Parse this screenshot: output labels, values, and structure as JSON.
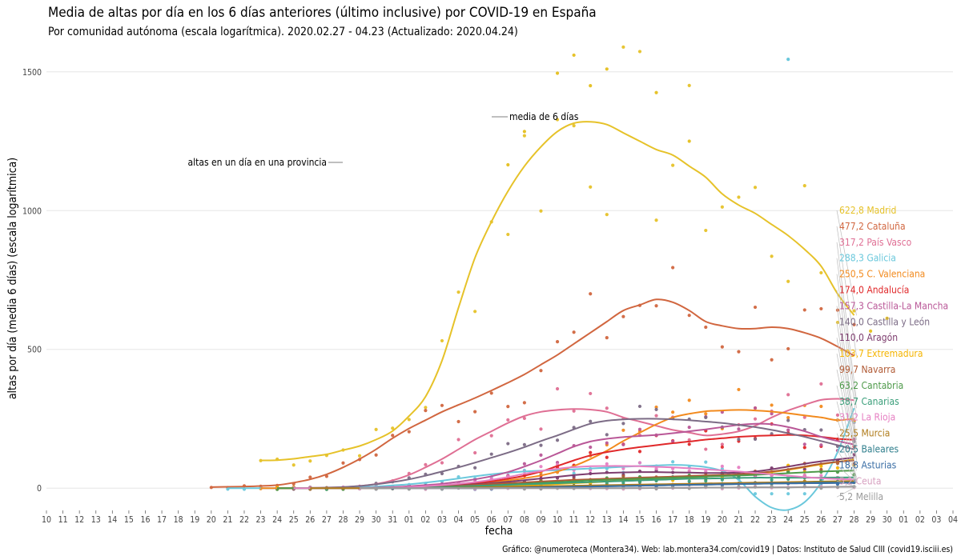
{
  "title": "Media de altas por día en los 6 días anteriores (último inclusive) por COVID-19 en España",
  "subtitle": "Por comunidad autónoma (escala logarítmica). 2020.02.27 - 04.23 (Actualizado: 2020.04.24)",
  "caption": "Gráfico: @numeroteca (Montera34). Web: lab.montera34.com/covid19 | Datos: Instituto de Salud CIII (covid19.isciii.es)",
  "chart_data": {
    "type": "line",
    "xlabel": "fecha",
    "ylabel": "altas por día (media 6 días) (escala logarítmica)",
    "ylim": [
      -80,
      1580
    ],
    "yticks": [
      0,
      500,
      1000,
      1500
    ],
    "ytick_labels": [
      "0",
      "500",
      "1000",
      "1500"
    ],
    "x_tick_labels": [
      "10",
      "11",
      "12",
      "13",
      "14",
      "15",
      "16",
      "17",
      "18",
      "19",
      "20",
      "21",
      "22",
      "23",
      "24",
      "25",
      "26",
      "27",
      "28",
      "29",
      "30",
      "31",
      "01",
      "02",
      "03",
      "04",
      "05",
      "06",
      "07",
      "08",
      "09",
      "10",
      "11",
      "12",
      "13",
      "14",
      "15",
      "16",
      "17",
      "18",
      "19",
      "20",
      "21",
      "22",
      "23",
      "24",
      "25",
      "26",
      "27",
      "28",
      "29",
      "30",
      "01",
      "02",
      "03",
      "04"
    ],
    "line_start_index": 5,
    "last_index": 49,
    "annotations": {
      "points": "altas en un día en una provincia",
      "mean": "media de 6 días"
    },
    "series": [
      {
        "name": "Madrid",
        "label": "622,8 Madrid",
        "color": "#e6c229",
        "values": [
          100,
          101,
          106,
          114,
          122,
          137,
          152,
          175,
          206,
          260,
          330,
          460,
          650,
          830,
          960,
          1070,
          1160,
          1230,
          1285,
          1315,
          1320,
          1310,
          1280,
          1250,
          1220,
          1200,
          1160,
          1120,
          1060,
          1020,
          990,
          950,
          910,
          860,
          800,
          700,
          622.8
        ]
      },
      {
        "name": "Cataluña",
        "label": "477,2 Cataluña",
        "color": "#d1663f",
        "values": [
          4,
          5,
          6,
          8,
          11,
          20,
          32,
          50,
          75,
          105,
          140,
          180,
          215,
          245,
          275,
          300,
          325,
          352,
          380,
          410,
          445,
          480,
          520,
          560,
          600,
          640,
          660,
          680,
          670,
          640,
          600,
          585,
          575,
          575,
          580,
          575,
          560,
          540,
          510,
          477.2
        ]
      },
      {
        "name": "País Vasco",
        "label": "317,2 País Vasco",
        "color": "#df6f94",
        "values": [
          0,
          0,
          0,
          1,
          2,
          4,
          8,
          15,
          28,
          48,
          75,
          105,
          140,
          175,
          205,
          235,
          260,
          275,
          282,
          285,
          283,
          275,
          255,
          240,
          225,
          210,
          200,
          190,
          195,
          205,
          225,
          255,
          280,
          300,
          318,
          322,
          317.2
        ]
      },
      {
        "name": "Galicia",
        "label": "288,3 Galicia",
        "color": "#6ac8dc",
        "values": [
          0,
          0,
          0,
          0,
          0,
          0,
          1,
          2,
          4,
          6,
          10,
          14,
          20,
          27,
          35,
          43,
          50,
          56,
          60,
          63,
          65,
          68,
          71,
          74,
          77,
          80,
          82,
          84,
          82,
          76,
          62,
          30,
          -30,
          -70,
          -78,
          -50,
          20,
          130,
          288.3
        ]
      },
      {
        "name": "C. Valenciana",
        "label": "250,5 C. Valenciana",
        "color": "#f28a1d",
        "values": [
          0,
          0,
          0,
          0,
          0,
          0,
          0,
          1,
          2,
          3,
          5,
          8,
          12,
          16,
          22,
          28,
          36,
          46,
          60,
          80,
          105,
          135,
          170,
          200,
          230,
          255,
          268,
          277,
          280,
          282,
          280,
          276,
          270,
          262,
          255,
          245,
          250.5
        ]
      },
      {
        "name": "Andalucía",
        "label": "174,0 Andalucía",
        "color": "#e0282a",
        "values": [
          0,
          0,
          0,
          0,
          0,
          0,
          1,
          2,
          4,
          6,
          9,
          13,
          18,
          25,
          34,
          45,
          60,
          80,
          100,
          118,
          130,
          140,
          148,
          155,
          162,
          168,
          175,
          180,
          185,
          188,
          190,
          192,
          190,
          185,
          178,
          174
        ]
      },
      {
        "name": "Castilla-La Mancha",
        "label": "157,3 Castilla-La Mancha",
        "color": "#b95797",
        "values": [
          0,
          0,
          0,
          0,
          0,
          1,
          2,
          4,
          7,
          11,
          16,
          23,
          32,
          43,
          58,
          78,
          100,
          125,
          150,
          168,
          178,
          184,
          188,
          192,
          198,
          205,
          212,
          220,
          228,
          232,
          230,
          220,
          205,
          185,
          170,
          157.3
        ]
      },
      {
        "name": "Castilla y León",
        "label": "140,0 Castilla y León",
        "color": "#7c6c86",
        "values": [
          0,
          0,
          1,
          2,
          4,
          8,
          14,
          22,
          32,
          45,
          60,
          75,
          92,
          110,
          128,
          148,
          170,
          190,
          212,
          232,
          243,
          248,
          250,
          250,
          248,
          245,
          240,
          235,
          228,
          220,
          210,
          198,
          185,
          170,
          155,
          140
        ]
      },
      {
        "name": "Aragón",
        "label": "110,0 Aragón",
        "color": "#7d3c6e",
        "values": [
          0,
          0,
          0,
          0,
          0,
          0,
          1,
          2,
          3,
          5,
          7,
          10,
          14,
          18,
          23,
          29,
          35,
          41,
          47,
          52,
          55,
          57,
          58,
          58,
          57,
          56,
          55,
          55,
          56,
          60,
          68,
          78,
          88,
          97,
          104,
          110
        ]
      },
      {
        "name": "Extremadura",
        "label": "103,7 Extremadura",
        "color": "#f4b400",
        "values": [
          0,
          0,
          0,
          0,
          0,
          0,
          0,
          1,
          1,
          2,
          3,
          4,
          5,
          7,
          9,
          11,
          13,
          15,
          18,
          21,
          24,
          27,
          30,
          33,
          36,
          39,
          42,
          45,
          48,
          52,
          58,
          66,
          76,
          86,
          95,
          103.7
        ]
      },
      {
        "name": "Navarra",
        "label": "99,7 Navarra",
        "color": "#b05a35",
        "values": [
          0,
          0,
          0,
          0,
          0,
          0,
          1,
          2,
          3,
          5,
          7,
          9,
          12,
          15,
          18,
          21,
          24,
          27,
          30,
          32,
          34,
          36,
          38,
          40,
          42,
          44,
          46,
          48,
          50,
          54,
          60,
          68,
          78,
          88,
          95,
          99.7
        ]
      },
      {
        "name": "Cantabria",
        "label": "63,2 Cantabria",
        "color": "#4e9a4a",
        "values": [
          0,
          0,
          0,
          0,
          0,
          0,
          0,
          1,
          2,
          3,
          4,
          6,
          8,
          10,
          13,
          16,
          19,
          22,
          25,
          28,
          30,
          32,
          34,
          36,
          38,
          40,
          42,
          44,
          46,
          48,
          51,
          54,
          57,
          60,
          62,
          63.2
        ]
      },
      {
        "name": "Canarias",
        "label": "38,7 Canarias",
        "color": "#3a9e7a",
        "values": [
          0,
          0,
          0,
          0,
          0,
          0,
          1,
          2,
          3,
          4,
          6,
          8,
          10,
          12,
          14,
          16,
          18,
          20,
          22,
          24,
          26,
          28,
          30,
          32,
          34,
          35,
          36,
          37,
          38,
          38,
          38,
          38,
          38,
          38.5,
          38.7
        ]
      },
      {
        "name": "La Rioja",
        "label": "31,2 La Rioja",
        "color": "#e67fc2",
        "values": [
          0,
          0,
          0,
          0,
          0,
          1,
          2,
          4,
          7,
          11,
          16,
          22,
          30,
          40,
          52,
          62,
          70,
          76,
          79,
          80,
          80,
          79,
          77,
          75,
          72,
          68,
          64,
          60,
          55,
          50,
          45,
          40,
          36,
          33,
          31.2
        ]
      },
      {
        "name": "Murcia",
        "label": "25,5 Murcia",
        "color": "#b07c1c",
        "values": [
          0,
          0,
          0,
          0,
          0,
          0,
          0,
          1,
          1,
          2,
          3,
          4,
          5,
          6,
          7,
          8,
          9,
          10,
          11,
          12,
          13,
          14,
          15,
          16,
          17,
          18,
          19,
          20,
          21,
          22,
          23,
          24,
          25,
          25.5
        ]
      },
      {
        "name": "Baleares",
        "label": "20,5 Baleares",
        "color": "#2f7e8c",
        "values": [
          0,
          0,
          0,
          0,
          0,
          0,
          0,
          1,
          1,
          2,
          3,
          4,
          5,
          6,
          7,
          8,
          9,
          10,
          11,
          12,
          13,
          14,
          15,
          16,
          17,
          18,
          19,
          20,
          20,
          20.5
        ]
      },
      {
        "name": "Asturias",
        "label": "18,8 Asturias",
        "color": "#3a6ea5",
        "values": [
          0,
          0,
          0,
          0,
          0,
          0,
          0,
          1,
          2,
          3,
          4,
          5,
          6,
          7,
          8,
          9,
          10,
          11,
          12,
          13,
          14,
          15,
          16,
          17,
          17,
          18,
          18,
          18.5,
          18.8
        ]
      },
      {
        "name": "Ceuta",
        "label": "5,2 Ceuta",
        "color": "#d7a1c0",
        "values": [
          0,
          0,
          0,
          0,
          0,
          0,
          0,
          0,
          0,
          0,
          0,
          0,
          0,
          0,
          0,
          0,
          0,
          1,
          1,
          1,
          2,
          2,
          2,
          3,
          3,
          3,
          4,
          4,
          4,
          5,
          5.2
        ]
      },
      {
        "name": "Melilla",
        "label": "5,2 Melilla",
        "color": "#9a9a9a",
        "values": [
          0,
          0,
          0,
          0,
          0,
          0,
          0,
          0,
          0,
          0,
          0,
          0,
          0,
          0,
          0,
          0,
          0,
          0,
          1,
          1,
          1,
          2,
          2,
          2,
          3,
          3,
          3,
          4,
          4,
          5,
          5.2
        ]
      }
    ]
  }
}
